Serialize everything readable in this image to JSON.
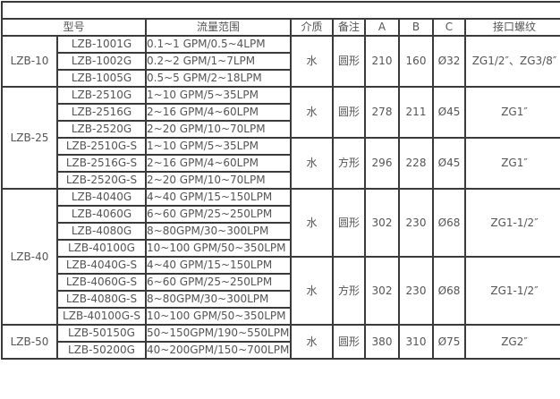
{
  "headers": [
    "型号",
    "流量范围",
    "介质",
    "备注",
    "A",
    "B",
    "C",
    "接口螺纹"
  ],
  "groups": [
    {
      "series": "LZB-10",
      "subgroups": [
        {
          "medium": "水",
          "shape": "圆形",
          "A": "210",
          "B": "160",
          "C": "Ø32",
          "thread": "ZG1/2″、ZG3/8″",
          "rows": [
            {
              "model": "LZB-1001G",
              "flow": "0.1~1 GPM/0.5~4LPM"
            },
            {
              "model": "LZB-1002G",
              "flow": "0.2~2 GPM/1~7LPM"
            },
            {
              "model": "LZB-1005G",
              "flow": "0.5~5 GPM/2~18LPM"
            }
          ]
        }
      ]
    },
    {
      "series": "LZB-25",
      "subgroups": [
        {
          "medium": "水",
          "shape": "圆形",
          "A": "278",
          "B": "211",
          "C": "Ø45",
          "thread": "ZG1″",
          "rows": [
            {
              "model": "LZB-2510G",
              "flow": "1~10 GPM/5~35LPM"
            },
            {
              "model": "LZB-2516G",
              "flow": "2~16 GPM/4~60LPM"
            },
            {
              "model": "LZB-2520G",
              "flow": "2~20 GPM/10~70LPM"
            }
          ]
        },
        {
          "medium": "水",
          "shape": "方形",
          "A": "296",
          "B": "228",
          "C": "Ø45",
          "thread": "ZG1″",
          "rows": [
            {
              "model": "LZB-2510G-S",
              "flow": "1~10 GPM/5~35LPM"
            },
            {
              "model": "LZB-2516G-S",
              "flow": "2~16 GPM/4~60LPM"
            },
            {
              "model": "LZB-2520G-S",
              "flow": "2~20 GPM/10~70LPM"
            }
          ]
        }
      ]
    },
    {
      "series": "LZB-40",
      "subgroups": [
        {
          "medium": "水",
          "shape": "圆形",
          "A": "302",
          "B": "230",
          "C": "Ø68",
          "thread": "ZG1-1/2″",
          "rows": [
            {
              "model": "LZB-4040G",
              "flow": "4~40 GPM/15~150LPM"
            },
            {
              "model": "LZB-4060G",
              "flow": "6~60 GPM/25~250LPM"
            },
            {
              "model": "LZB-4080G",
              "flow": "8~80GPM/30~300LPM"
            },
            {
              "model": "LZB-40100G",
              "flow": "10~100 GPM/50~350LPM"
            }
          ]
        },
        {
          "medium": "水",
          "shape": "方形",
          "A": "302",
          "B": "230",
          "C": "Ø68",
          "thread": "ZG1-1/2″",
          "rows": [
            {
              "model": "LZB-4040G-S",
              "flow": "4~40 GPM/15~150LPM"
            },
            {
              "model": "LZB-4060G-S",
              "flow": "6~60 GPM/25~250LPM"
            },
            {
              "model": "LZB-4080G-S",
              "flow": "8~80GPM/30~300LPM"
            },
            {
              "model": "LZB-40100G-S",
              "flow": "10~100 GPM/50~350LPM"
            }
          ]
        }
      ]
    },
    {
      "series": "LZB-50",
      "subgroups": [
        {
          "medium": "水",
          "shape": "圆形",
          "A": "380",
          "B": "310",
          "C": "Ø75",
          "thread": "ZG2″",
          "rows": [
            {
              "model": "LZB-50150G",
              "flow": "50~150GPM/190~550LPM"
            },
            {
              "model": "LZB-50200G",
              "flow": "40~200GPM/150~700LPM"
            }
          ]
        }
      ]
    }
  ]
}
